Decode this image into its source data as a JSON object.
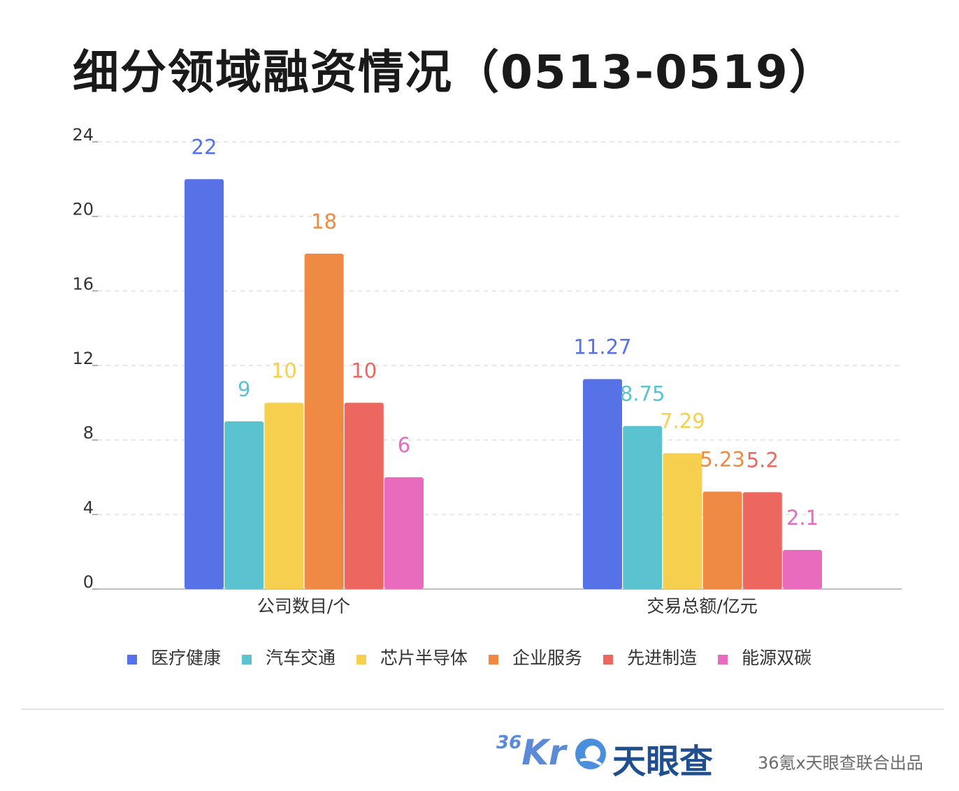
{
  "title": "细分领域融资情况（0513-0519）",
  "chart_data": {
    "type": "bar",
    "categories": [
      "公司数目/个",
      "交易总额/亿元"
    ],
    "series": [
      {
        "name": "医疗健康",
        "values": [
          22,
          11.27
        ],
        "color": "#5672e6"
      },
      {
        "name": "汽车交通",
        "values": [
          9,
          8.75
        ],
        "color": "#5bc3d0"
      },
      {
        "name": "芯片半导体",
        "values": [
          10,
          7.29
        ],
        "color": "#f6cf4f"
      },
      {
        "name": "企业服务",
        "values": [
          18,
          5.23
        ],
        "color": "#ee8a43"
      },
      {
        "name": "先进制造",
        "values": [
          10,
          5.2
        ],
        "color": "#eb6760"
      },
      {
        "name": "能源双碳",
        "values": [
          6,
          2.1
        ],
        "color": "#e86bbd"
      }
    ],
    "yticks": [
      "0",
      "4",
      "8",
      "12",
      "16",
      "20",
      "24"
    ],
    "ylim": [
      0,
      24
    ],
    "grid": true,
    "legend": "bottom"
  },
  "footer": {
    "brand_36kr_num": "36",
    "brand_36kr_kr": "Kr",
    "brand_tyc": "天眼查",
    "credit": "36氪x天眼查联合出品"
  }
}
